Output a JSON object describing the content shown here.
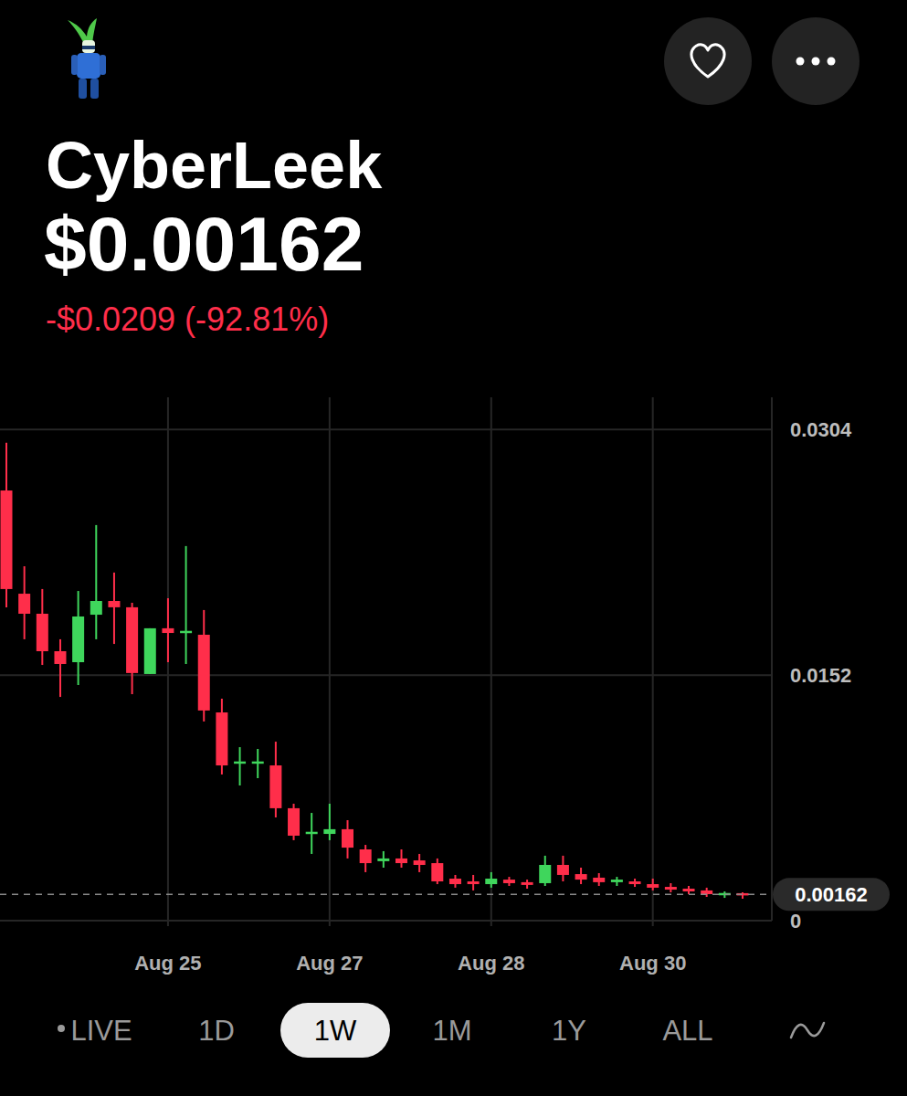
{
  "chart_data": {
    "type": "candlestick",
    "title": "CyberLeek",
    "price": "$0.00162",
    "change": "-$0.0209 (-92.81%)",
    "categories": [
      null,
      null,
      null,
      null,
      null,
      null,
      null,
      null,
      null,
      "Aug 25",
      null,
      null,
      null,
      null,
      null,
      null,
      null,
      null,
      "Aug 27",
      null,
      null,
      null,
      null,
      null,
      null,
      null,
      null,
      "Aug 28",
      null,
      null,
      null,
      null,
      null,
      null,
      null,
      null,
      "Aug 30",
      null,
      null,
      null,
      null,
      null
    ],
    "open": [
      0.02663,
      0.02024,
      0.019,
      0.01668,
      0.016,
      0.01894,
      0.01979,
      0.0194,
      0.01527,
      0.0181,
      0.01781,
      0.0177,
      0.01289,
      0.00973,
      0.00973,
      0.00961,
      0.00696,
      0.00537,
      0.00537,
      0.00566,
      0.00441,
      0.00368,
      0.00385,
      0.00373,
      0.00356,
      0.0026,
      0.00243,
      0.00226,
      0.00254,
      0.00238,
      0.00232,
      0.00345,
      0.00288,
      0.00266,
      0.00238,
      0.00243,
      0.00226,
      0.00209,
      0.00198,
      0.00187,
      0.00158,
      0.00164
    ],
    "high": [
      0.02958,
      0.02194,
      0.02053,
      0.01742,
      0.02041,
      0.02449,
      0.02155,
      0.01968,
      0.0181,
      0.01996,
      0.02319,
      0.01923,
      0.01374,
      0.01074,
      0.01063,
      0.01108,
      0.00724,
      0.00667,
      0.00724,
      0.00622,
      0.00469,
      0.0043,
      0.00441,
      0.00413,
      0.00385,
      0.00283,
      0.00283,
      0.003,
      0.00271,
      0.00254,
      0.00402,
      0.00402,
      0.00328,
      0.00294,
      0.00271,
      0.0026,
      0.0026,
      0.00232,
      0.00215,
      0.00204,
      0.00181,
      0.00175
    ],
    "low": [
      0.0194,
      0.01742,
      0.01583,
      0.01385,
      0.01459,
      0.01742,
      0.01713,
      0.01402,
      0.01527,
      0.016,
      0.01589,
      0.01233,
      0.00905,
      0.00837,
      0.00882,
      0.00639,
      0.00498,
      0.00413,
      0.00498,
      0.00385,
      0.003,
      0.00328,
      0.00328,
      0.003,
      0.00226,
      0.00204,
      0.00187,
      0.00204,
      0.00215,
      0.00198,
      0.00215,
      0.00243,
      0.00226,
      0.00215,
      0.00215,
      0.00209,
      0.00187,
      0.00175,
      0.00164,
      0.00147,
      0.00141,
      0.00136
    ],
    "close": [
      0.02053,
      0.019,
      0.01668,
      0.01589,
      0.01883,
      0.01979,
      0.0194,
      0.01533,
      0.0181,
      0.01781,
      0.01793,
      0.01301,
      0.00961,
      0.00984,
      0.00984,
      0.00696,
      0.00526,
      0.00549,
      0.00566,
      0.00452,
      0.00356,
      0.00385,
      0.00356,
      0.00345,
      0.00243,
      0.00226,
      0.00226,
      0.0026,
      0.00232,
      0.00221,
      0.00345,
      0.00283,
      0.00254,
      0.00238,
      0.00254,
      0.00226,
      0.00204,
      0.00192,
      0.00181,
      0.00164,
      0.0017,
      0.00162
    ],
    "ylim": [
      0,
      0.0324
    ],
    "yticks": [
      0,
      0.0152,
      0.0304
    ],
    "grid": true,
    "current_price": 0.00162,
    "ranges": [
      "LIVE",
      "1D",
      "1W",
      "1M",
      "1Y",
      "ALL"
    ],
    "selected_range": "1W"
  }
}
